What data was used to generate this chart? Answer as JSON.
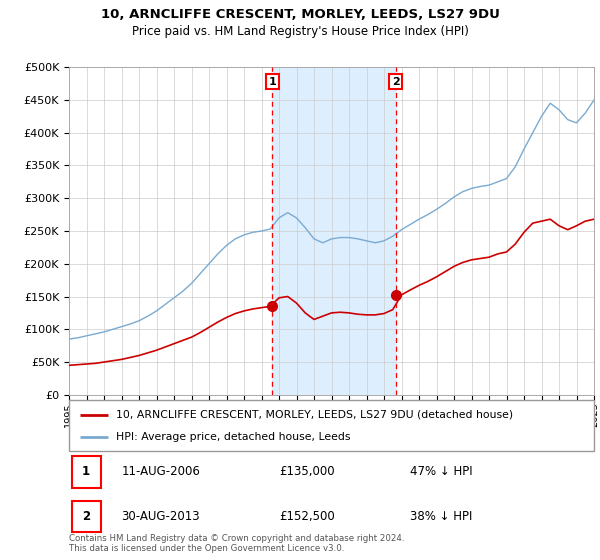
{
  "title": "10, ARNCLIFFE CRESCENT, MORLEY, LEEDS, LS27 9DU",
  "subtitle": "Price paid vs. HM Land Registry's House Price Index (HPI)",
  "sale1_date": 2006.62,
  "sale1_price": 135000,
  "sale2_date": 2013.66,
  "sale2_price": 152500,
  "hpi_label": "HPI: Average price, detached house, Leeds",
  "price_label": "10, ARNCLIFFE CRESCENT, MORLEY, LEEDS, LS27 9DU (detached house)",
  "sale1_label": "11-AUG-2006",
  "sale1_text": "£135,000",
  "sale1_pct": "47% ↓ HPI",
  "sale2_label": "30-AUG-2013",
  "sale2_text": "£152,500",
  "sale2_pct": "38% ↓ HPI",
  "footnote": "Contains HM Land Registry data © Crown copyright and database right 2024.\nThis data is licensed under the Open Government Licence v3.0.",
  "xmin": 1995,
  "xmax": 2025,
  "ymin": 0,
  "ymax": 500000,
  "background_color": "#ffffff",
  "hpi_color": "#7aaad0",
  "price_color": "#cc0000",
  "shade_color": "#ddeeff",
  "hpi_years": [
    1995.0,
    1995.5,
    1996.0,
    1996.5,
    1997.0,
    1997.5,
    1998.0,
    1998.5,
    1999.0,
    1999.5,
    2000.0,
    2000.5,
    2001.0,
    2001.5,
    2002.0,
    2002.5,
    2003.0,
    2003.5,
    2004.0,
    2004.5,
    2005.0,
    2005.5,
    2006.0,
    2006.5,
    2007.0,
    2007.5,
    2008.0,
    2008.5,
    2009.0,
    2009.5,
    2010.0,
    2010.5,
    2011.0,
    2011.5,
    2012.0,
    2012.5,
    2013.0,
    2013.5,
    2014.0,
    2014.5,
    2015.0,
    2015.5,
    2016.0,
    2016.5,
    2017.0,
    2017.5,
    2018.0,
    2018.5,
    2019.0,
    2019.5,
    2020.0,
    2020.5,
    2021.0,
    2021.5,
    2022.0,
    2022.5,
    2023.0,
    2023.5,
    2024.0,
    2024.5,
    2025.0
  ],
  "hpi_values": [
    85000,
    87000,
    90000,
    93000,
    96000,
    100000,
    104000,
    108000,
    113000,
    120000,
    128000,
    138000,
    148000,
    158000,
    170000,
    185000,
    200000,
    215000,
    228000,
    238000,
    244000,
    248000,
    250000,
    253000,
    270000,
    278000,
    270000,
    255000,
    238000,
    232000,
    238000,
    240000,
    240000,
    238000,
    235000,
    232000,
    235000,
    242000,
    252000,
    260000,
    268000,
    275000,
    283000,
    292000,
    302000,
    310000,
    315000,
    318000,
    320000,
    325000,
    330000,
    348000,
    375000,
    400000,
    425000,
    445000,
    435000,
    420000,
    415000,
    430000,
    450000
  ],
  "price_years": [
    1995.0,
    1995.5,
    1996.0,
    1996.5,
    1997.0,
    1997.5,
    1998.0,
    1998.5,
    1999.0,
    1999.5,
    2000.0,
    2000.5,
    2001.0,
    2001.5,
    2002.0,
    2002.5,
    2003.0,
    2003.5,
    2004.0,
    2004.5,
    2005.0,
    2005.5,
    2006.0,
    2006.5,
    2007.0,
    2007.5,
    2008.0,
    2008.5,
    2009.0,
    2009.5,
    2010.0,
    2010.5,
    2011.0,
    2011.5,
    2012.0,
    2012.5,
    2013.0,
    2013.5,
    2014.0,
    2014.5,
    2015.0,
    2015.5,
    2016.0,
    2016.5,
    2017.0,
    2017.5,
    2018.0,
    2018.5,
    2019.0,
    2019.5,
    2020.0,
    2020.5,
    2021.0,
    2021.5,
    2022.0,
    2022.5,
    2023.0,
    2023.5,
    2024.0,
    2024.5,
    2025.0
  ],
  "price_values": [
    45000,
    46000,
    47000,
    48000,
    50000,
    52000,
    54000,
    57000,
    60000,
    64000,
    68000,
    73000,
    78000,
    83000,
    88000,
    95000,
    103000,
    111000,
    118000,
    124000,
    128000,
    131000,
    133000,
    135000,
    148000,
    150000,
    140000,
    125000,
    115000,
    120000,
    125000,
    126000,
    125000,
    123000,
    122000,
    122000,
    124000,
    130000,
    152500,
    160000,
    167000,
    173000,
    180000,
    188000,
    196000,
    202000,
    206000,
    208000,
    210000,
    215000,
    218000,
    230000,
    248000,
    262000,
    265000,
    268000,
    258000,
    252000,
    258000,
    265000,
    268000
  ]
}
